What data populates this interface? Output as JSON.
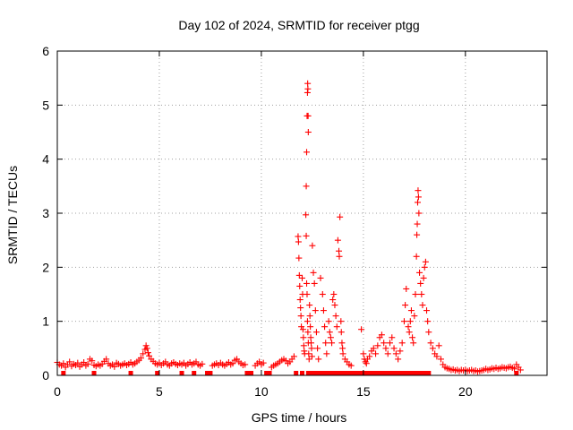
{
  "chart_data": {
    "type": "scatter",
    "title": "Day 102 of 2024, SRMTID for receiver ptgg",
    "xlabel": "GPS time / hours",
    "ylabel": "SRMTID / TECUs",
    "xlim": [
      0,
      24
    ],
    "ylim": [
      0,
      6
    ],
    "x_ticks": [
      0,
      5,
      10,
      15,
      20
    ],
    "y_ticks": [
      0,
      1,
      2,
      3,
      4,
      5,
      6
    ],
    "grid": true,
    "series": [
      {
        "name": "SRMTID",
        "marker": "+",
        "color": "#ff0000",
        "points": [
          [
            0.0,
            0.24
          ],
          [
            0.1,
            0.2
          ],
          [
            0.2,
            0.18
          ],
          [
            0.3,
            0.22
          ],
          [
            0.4,
            0.15
          ],
          [
            0.5,
            0.2
          ],
          [
            0.6,
            0.25
          ],
          [
            0.7,
            0.17
          ],
          [
            0.8,
            0.21
          ],
          [
            0.9,
            0.19
          ],
          [
            1.0,
            0.23
          ],
          [
            1.1,
            0.16
          ],
          [
            1.2,
            0.2
          ],
          [
            1.3,
            0.24
          ],
          [
            1.4,
            0.18
          ],
          [
            1.5,
            0.21
          ],
          [
            1.6,
            0.3
          ],
          [
            1.7,
            0.27
          ],
          [
            1.8,
            0.19
          ],
          [
            1.9,
            0.17
          ],
          [
            2.0,
            0.2
          ],
          [
            2.1,
            0.18
          ],
          [
            2.2,
            0.21
          ],
          [
            2.3,
            0.26
          ],
          [
            2.4,
            0.3
          ],
          [
            2.5,
            0.22
          ],
          [
            2.6,
            0.18
          ],
          [
            2.7,
            0.2
          ],
          [
            2.8,
            0.16
          ],
          [
            2.9,
            0.23
          ],
          [
            3.0,
            0.21
          ],
          [
            3.1,
            0.18
          ],
          [
            3.2,
            0.2
          ],
          [
            3.3,
            0.22
          ],
          [
            3.4,
            0.19
          ],
          [
            3.5,
            0.21
          ],
          [
            3.6,
            0.24
          ],
          [
            3.7,
            0.2
          ],
          [
            3.8,
            0.22
          ],
          [
            3.9,
            0.25
          ],
          [
            4.0,
            0.28
          ],
          [
            4.1,
            0.32
          ],
          [
            4.2,
            0.4
          ],
          [
            4.3,
            0.48
          ],
          [
            4.35,
            0.55
          ],
          [
            4.4,
            0.5
          ],
          [
            4.45,
            0.42
          ],
          [
            4.5,
            0.36
          ],
          [
            4.6,
            0.3
          ],
          [
            4.7,
            0.26
          ],
          [
            4.8,
            0.22
          ],
          [
            4.9,
            0.2
          ],
          [
            5.0,
            0.23
          ],
          [
            5.1,
            0.19
          ],
          [
            5.2,
            0.22
          ],
          [
            5.3,
            0.25
          ],
          [
            5.4,
            0.2
          ],
          [
            5.5,
            0.18
          ],
          [
            5.6,
            0.22
          ],
          [
            5.7,
            0.24
          ],
          [
            5.8,
            0.21
          ],
          [
            5.9,
            0.19
          ],
          [
            6.0,
            0.22
          ],
          [
            6.1,
            0.2
          ],
          [
            6.2,
            0.23
          ],
          [
            6.3,
            0.18
          ],
          [
            6.4,
            0.21
          ],
          [
            6.5,
            0.24
          ],
          [
            6.6,
            0.2
          ],
          [
            6.7,
            0.22
          ],
          [
            6.8,
            0.25
          ],
          [
            6.9,
            0.2
          ],
          [
            7.0,
            0.18
          ],
          [
            7.1,
            0.21
          ],
          [
            7.6,
            0.18
          ],
          [
            7.7,
            0.2
          ],
          [
            7.8,
            0.22
          ],
          [
            7.9,
            0.19
          ],
          [
            8.0,
            0.23
          ],
          [
            8.1,
            0.2
          ],
          [
            8.2,
            0.18
          ],
          [
            8.3,
            0.21
          ],
          [
            8.4,
            0.24
          ],
          [
            8.5,
            0.2
          ],
          [
            8.6,
            0.22
          ],
          [
            8.7,
            0.28
          ],
          [
            8.8,
            0.3
          ],
          [
            8.9,
            0.25
          ],
          [
            9.0,
            0.22
          ],
          [
            9.1,
            0.19
          ],
          [
            9.2,
            0.2
          ],
          [
            9.7,
            0.18
          ],
          [
            9.8,
            0.22
          ],
          [
            9.9,
            0.25
          ],
          [
            10.0,
            0.2
          ],
          [
            10.1,
            0.23
          ],
          [
            10.5,
            0.15
          ],
          [
            10.6,
            0.18
          ],
          [
            10.7,
            0.2
          ],
          [
            10.8,
            0.22
          ],
          [
            10.9,
            0.25
          ],
          [
            11.0,
            0.28
          ],
          [
            11.1,
            0.3
          ],
          [
            11.2,
            0.27
          ],
          [
            11.3,
            0.22
          ],
          [
            11.4,
            0.25
          ],
          [
            11.5,
            0.3
          ],
          [
            11.6,
            0.35
          ],
          [
            11.8,
            2.57
          ],
          [
            11.82,
            2.47
          ],
          [
            11.84,
            2.17
          ],
          [
            11.86,
            1.85
          ],
          [
            11.88,
            1.65
          ],
          [
            11.9,
            1.4
          ],
          [
            11.92,
            1.25
          ],
          [
            11.94,
            1.1
          ],
          [
            11.96,
            0.9
          ],
          [
            12.0,
            1.8
          ],
          [
            12.02,
            1.5
          ],
          [
            12.04,
            0.85
          ],
          [
            12.06,
            0.7
          ],
          [
            12.08,
            0.55
          ],
          [
            12.1,
            0.45
          ],
          [
            12.12,
            0.4
          ],
          [
            12.18,
            2.97
          ],
          [
            12.2,
            3.5
          ],
          [
            12.22,
            4.13
          ],
          [
            12.24,
            4.8
          ],
          [
            12.26,
            5.23
          ],
          [
            12.27,
            5.4
          ],
          [
            12.28,
            5.3
          ],
          [
            12.29,
            4.8
          ],
          [
            12.3,
            4.5
          ],
          [
            12.2,
            2.58
          ],
          [
            12.22,
            1.7
          ],
          [
            12.24,
            1.5
          ],
          [
            12.26,
            1.0
          ],
          [
            12.28,
            0.8
          ],
          [
            12.3,
            0.6
          ],
          [
            12.32,
            0.4
          ],
          [
            12.34,
            0.3
          ],
          [
            12.36,
            1.3
          ],
          [
            12.38,
            1.1
          ],
          [
            12.4,
            0.9
          ],
          [
            12.42,
            0.7
          ],
          [
            12.44,
            0.6
          ],
          [
            12.46,
            0.5
          ],
          [
            12.48,
            0.35
          ],
          [
            12.5,
            2.4
          ],
          [
            12.55,
            1.9
          ],
          [
            12.6,
            1.7
          ],
          [
            12.65,
            1.2
          ],
          [
            12.7,
            0.8
          ],
          [
            12.75,
            0.5
          ],
          [
            12.8,
            0.3
          ],
          [
            12.9,
            1.8
          ],
          [
            13.0,
            1.5
          ],
          [
            13.05,
            1.2
          ],
          [
            13.1,
            0.9
          ],
          [
            13.15,
            0.6
          ],
          [
            13.2,
            0.4
          ],
          [
            13.3,
            1.0
          ],
          [
            13.35,
            0.8
          ],
          [
            13.4,
            0.7
          ],
          [
            13.45,
            0.6
          ],
          [
            13.5,
            1.4
          ],
          [
            13.55,
            1.5
          ],
          [
            13.6,
            1.3
          ],
          [
            13.65,
            1.1
          ],
          [
            13.7,
            0.9
          ],
          [
            13.75,
            2.5
          ],
          [
            13.8,
            2.3
          ],
          [
            13.82,
            2.2
          ],
          [
            13.85,
            2.93
          ],
          [
            13.9,
            1.0
          ],
          [
            13.92,
            0.8
          ],
          [
            13.95,
            0.6
          ],
          [
            13.98,
            0.5
          ],
          [
            14.0,
            0.4
          ],
          [
            14.1,
            0.3
          ],
          [
            14.2,
            0.25
          ],
          [
            14.3,
            0.2
          ],
          [
            14.4,
            0.18
          ],
          [
            14.9,
            0.85
          ],
          [
            15.0,
            0.4
          ],
          [
            15.05,
            0.3
          ],
          [
            15.1,
            0.25
          ],
          [
            15.15,
            0.22
          ],
          [
            15.2,
            0.3
          ],
          [
            15.3,
            0.35
          ],
          [
            15.4,
            0.45
          ],
          [
            15.5,
            0.5
          ],
          [
            15.6,
            0.4
          ],
          [
            15.7,
            0.55
          ],
          [
            15.8,
            0.7
          ],
          [
            15.9,
            0.75
          ],
          [
            16.0,
            0.6
          ],
          [
            16.1,
            0.5
          ],
          [
            16.2,
            0.4
          ],
          [
            16.3,
            0.6
          ],
          [
            16.4,
            0.7
          ],
          [
            16.5,
            0.5
          ],
          [
            16.6,
            0.4
          ],
          [
            16.7,
            0.3
          ],
          [
            16.8,
            0.45
          ],
          [
            16.9,
            0.6
          ],
          [
            17.0,
            1.0
          ],
          [
            17.05,
            1.3
          ],
          [
            17.1,
            1.6
          ],
          [
            17.2,
            0.9
          ],
          [
            17.25,
            0.8
          ],
          [
            17.3,
            1.0
          ],
          [
            17.35,
            1.2
          ],
          [
            17.4,
            0.7
          ],
          [
            17.45,
            0.6
          ],
          [
            17.5,
            1.1
          ],
          [
            17.55,
            1.5
          ],
          [
            17.6,
            2.2
          ],
          [
            17.62,
            2.6
          ],
          [
            17.64,
            2.8
          ],
          [
            17.66,
            3.2
          ],
          [
            17.68,
            3.42
          ],
          [
            17.7,
            3.3
          ],
          [
            17.72,
            3.0
          ],
          [
            17.75,
            1.9
          ],
          [
            17.8,
            1.7
          ],
          [
            17.85,
            1.5
          ],
          [
            17.9,
            1.3
          ],
          [
            17.95,
            1.8
          ],
          [
            18.0,
            2.0
          ],
          [
            18.05,
            2.1
          ],
          [
            18.1,
            1.2
          ],
          [
            18.15,
            1.0
          ],
          [
            18.2,
            0.8
          ],
          [
            18.3,
            0.6
          ],
          [
            18.4,
            0.5
          ],
          [
            18.5,
            0.4
          ],
          [
            18.6,
            0.35
          ],
          [
            18.7,
            0.55
          ],
          [
            18.8,
            0.3
          ],
          [
            18.9,
            0.2
          ],
          [
            19.0,
            0.15
          ],
          [
            19.1,
            0.13
          ],
          [
            19.2,
            0.12
          ],
          [
            19.3,
            0.1
          ],
          [
            19.4,
            0.11
          ],
          [
            19.5,
            0.09
          ],
          [
            19.6,
            0.1
          ],
          [
            19.7,
            0.08
          ],
          [
            19.8,
            0.1
          ],
          [
            19.9,
            0.09
          ],
          [
            20.0,
            0.1
          ],
          [
            20.1,
            0.08
          ],
          [
            20.2,
            0.09
          ],
          [
            20.3,
            0.1
          ],
          [
            20.4,
            0.08
          ],
          [
            20.5,
            0.09
          ],
          [
            20.6,
            0.07
          ],
          [
            20.7,
            0.08
          ],
          [
            20.8,
            0.09
          ],
          [
            20.9,
            0.1
          ],
          [
            21.0,
            0.12
          ],
          [
            21.1,
            0.1
          ],
          [
            21.2,
            0.11
          ],
          [
            21.3,
            0.13
          ],
          [
            21.4,
            0.12
          ],
          [
            21.5,
            0.14
          ],
          [
            21.6,
            0.12
          ],
          [
            21.7,
            0.13
          ],
          [
            21.8,
            0.15
          ],
          [
            21.9,
            0.14
          ],
          [
            22.0,
            0.13
          ],
          [
            22.1,
            0.15
          ],
          [
            22.2,
            0.16
          ],
          [
            22.3,
            0.14
          ],
          [
            22.4,
            0.12
          ],
          [
            22.5,
            0.2
          ],
          [
            22.6,
            0.15
          ],
          [
            22.7,
            0.1
          ]
        ],
        "zero_markers": [
          0.3,
          1.8,
          3.6,
          4.9,
          6.1,
          6.7,
          7.35,
          7.5,
          9.3,
          9.5,
          10.25,
          10.4,
          11.7,
          12.0,
          12.3,
          12.5,
          12.7,
          12.9,
          13.1,
          13.3,
          13.5,
          13.7,
          13.9,
          14.1,
          14.3,
          14.5,
          14.7,
          14.8,
          15.0,
          15.2,
          15.4,
          15.6,
          15.8,
          16.0,
          16.2,
          16.4,
          16.6,
          16.8,
          17.0,
          17.2,
          17.4,
          17.6,
          17.8,
          18.0,
          18.2,
          22.5
        ]
      }
    ]
  }
}
